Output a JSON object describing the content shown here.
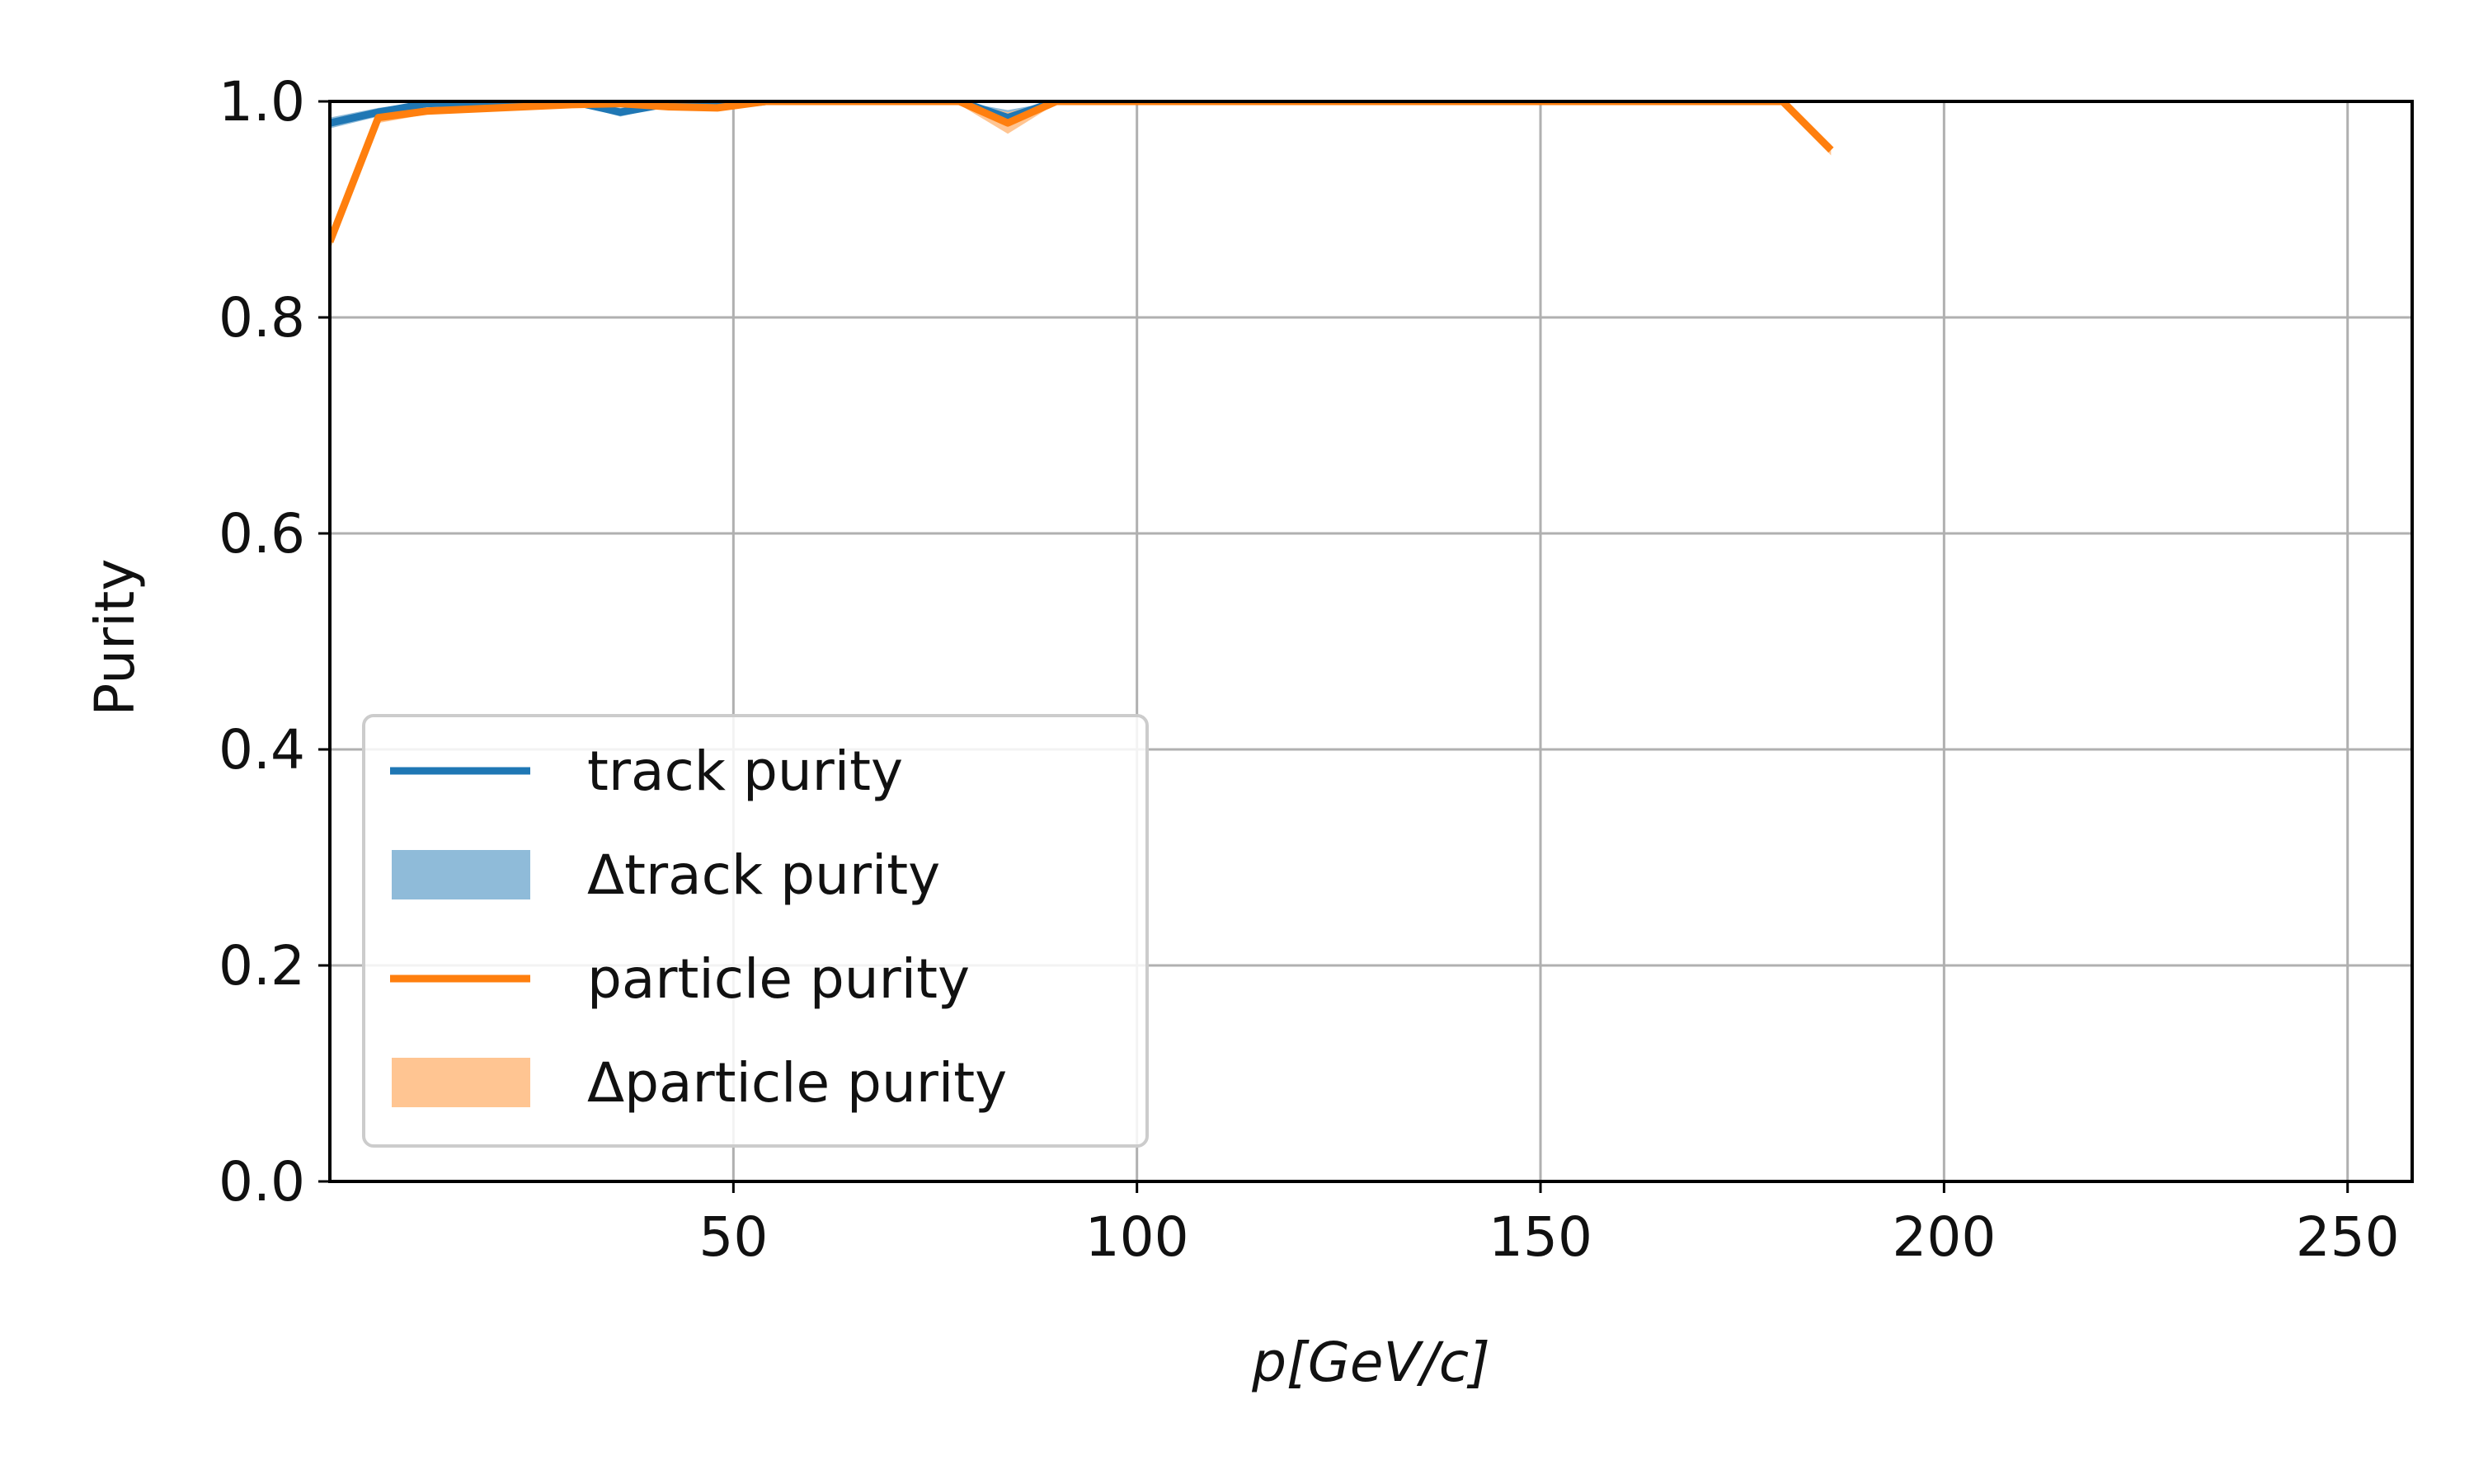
{
  "chart_data": {
    "type": "line",
    "title": "",
    "xlabel": "p[GeV/c]",
    "ylabel": "Purity",
    "xlim": [
      0,
      258
    ],
    "ylim": [
      0,
      1.0
    ],
    "xticks": [
      50,
      100,
      150,
      200,
      250
    ],
    "xtick_labels": [
      "50",
      "100",
      "150",
      "200",
      "250"
    ],
    "yticks": [
      0.0,
      0.2,
      0.4,
      0.6,
      0.8,
      1.0
    ],
    "ytick_labels": [
      "0.0",
      "0.2",
      "0.4",
      "0.6",
      "0.8",
      "1.0"
    ],
    "grid": true,
    "legend_position": "lower-left",
    "series": [
      {
        "name": "track purity",
        "kind": "line",
        "color": "#1f77b4",
        "x": [
          0,
          6,
          12,
          18,
          24,
          30,
          36,
          42,
          48,
          54,
          60,
          66,
          72,
          78,
          84,
          90,
          96,
          102,
          108
        ],
        "y": [
          0.98,
          0.99,
          0.998,
          0.999,
          0.998,
          1.0,
          0.99,
          0.998,
          0.995,
          1.0,
          1.0,
          1.0,
          1.0,
          1.0,
          0.985,
          1.0,
          1.0,
          1.0,
          1.0
        ]
      },
      {
        "name": "Δtrack purity",
        "kind": "band",
        "color": "#1f77b4",
        "x": [
          0,
          6,
          12,
          18,
          24,
          30,
          36,
          42,
          48,
          54,
          60,
          66,
          72,
          78,
          84,
          90,
          96,
          102,
          108
        ],
        "lower": [
          0.975,
          0.986,
          0.996,
          0.997,
          0.996,
          0.998,
          0.986,
          0.996,
          0.993,
          0.998,
          0.998,
          0.998,
          0.998,
          0.998,
          0.978,
          0.998,
          0.998,
          0.998,
          0.998
        ],
        "upper": [
          0.985,
          0.994,
          1.0,
          1.0,
          1.0,
          1.0,
          0.994,
          1.0,
          0.997,
          1.0,
          1.0,
          1.0,
          1.0,
          1.0,
          0.992,
          1.0,
          1.0,
          1.0,
          1.0
        ]
      },
      {
        "name": "particle purity",
        "kind": "line",
        "color": "#ff7f0e",
        "x": [
          0,
          6,
          12,
          18,
          24,
          30,
          36,
          42,
          48,
          54,
          60,
          66,
          72,
          78,
          84,
          90,
          96,
          102,
          108,
          114,
          120,
          126,
          132,
          138,
          144,
          150,
          156,
          162,
          168,
          174,
          180,
          186
        ],
        "y": [
          0.87,
          0.985,
          0.991,
          0.993,
          0.995,
          0.997,
          0.998,
          0.995,
          0.994,
          1.0,
          1.0,
          1.0,
          1.0,
          1.0,
          0.98,
          1.0,
          1.0,
          1.0,
          1.0,
          1.0,
          1.0,
          1.0,
          1.0,
          1.0,
          1.0,
          1.0,
          1.0,
          1.0,
          1.0,
          1.0,
          1.0,
          0.955
        ]
      },
      {
        "name": "Δparticle purity",
        "kind": "band",
        "color": "#ffbf86",
        "x": [
          0,
          6,
          12,
          18,
          24,
          30,
          36,
          42,
          48,
          54,
          60,
          66,
          72,
          78,
          84,
          90,
          96,
          102,
          108,
          114,
          120,
          126,
          132,
          138,
          144,
          150,
          156,
          162,
          168,
          174,
          180,
          186
        ],
        "lower": [
          0.862,
          0.98,
          0.988,
          0.99,
          0.992,
          0.995,
          0.996,
          0.993,
          0.992,
          0.998,
          0.998,
          0.998,
          0.998,
          0.997,
          0.97,
          0.998,
          0.998,
          0.998,
          0.998,
          0.998,
          0.998,
          0.998,
          0.998,
          0.998,
          0.998,
          0.998,
          0.998,
          0.998,
          0.998,
          0.998,
          0.998,
          0.95
        ],
        "upper": [
          0.878,
          0.99,
          0.994,
          0.996,
          0.998,
          0.999,
          1.0,
          0.997,
          0.996,
          1.0,
          1.0,
          1.0,
          1.0,
          1.0,
          0.99,
          1.0,
          1.0,
          1.0,
          1.0,
          1.0,
          1.0,
          1.0,
          1.0,
          1.0,
          1.0,
          1.0,
          1.0,
          1.0,
          1.0,
          1.0,
          1.0,
          0.96
        ]
      }
    ]
  }
}
